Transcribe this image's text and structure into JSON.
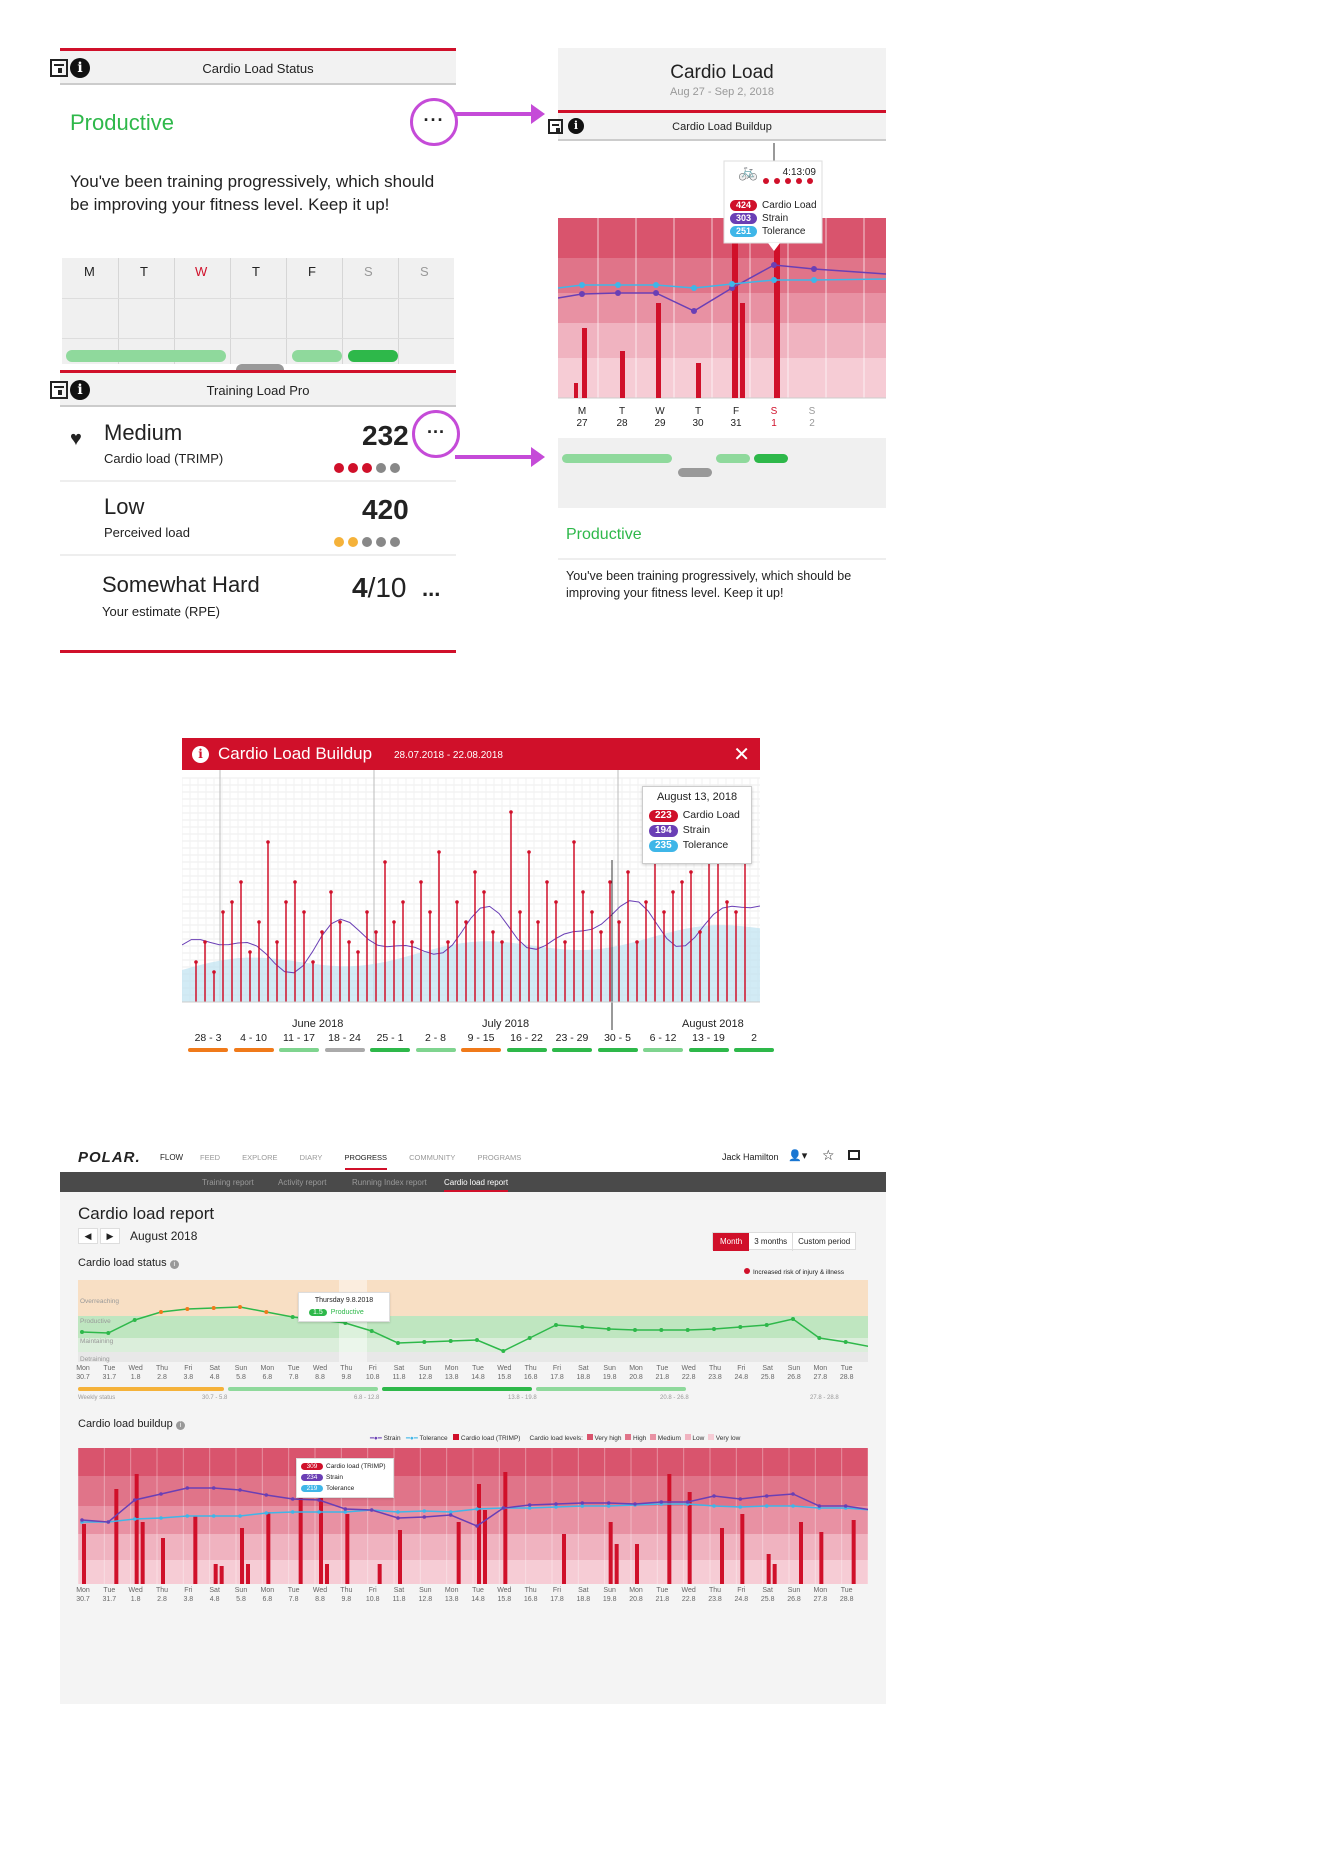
{
  "status_card": {
    "header_title": "Cardio Load Status",
    "status": "Productive",
    "more": "···",
    "description": "You've been training progressively, which should be improving your fitness level. Keep it up!",
    "days": [
      "M",
      "T",
      "W",
      "T",
      "F",
      "S",
      "S"
    ]
  },
  "pro_card": {
    "header_title": "Training Load Pro",
    "rows": [
      {
        "level": "Medium",
        "sub": "Cardio load (TRIMP)",
        "value": "232",
        "more": "···"
      },
      {
        "level": "Low",
        "sub": "Perceived load",
        "value": "420"
      },
      {
        "level": "Somewhat Hard",
        "sub": "Your estimate (RPE)",
        "value_main": "4",
        "value_rest": "/10",
        "more": "..."
      }
    ]
  },
  "mobile_screen": {
    "title": "Cardio Load",
    "date_range": "Aug 27 - Sep 2, 2018",
    "header_title": "Cardio Load Buildup",
    "tooltip": {
      "time": "4:13:09",
      "load": "424",
      "load_label": "Cardio Load",
      "strain": "303",
      "strain_label": "Strain",
      "tolerance": "251",
      "tolerance_label": "Tolerance"
    },
    "days": [
      {
        "d": "M",
        "n": "27"
      },
      {
        "d": "T",
        "n": "28"
      },
      {
        "d": "W",
        "n": "29"
      },
      {
        "d": "T",
        "n": "30"
      },
      {
        "d": "F",
        "n": "31"
      },
      {
        "d": "S",
        "n": "1"
      },
      {
        "d": "S",
        "n": "2"
      }
    ],
    "status": "Productive",
    "description": "You've been training progressively, which should be improving your fitness level. Keep it up!"
  },
  "buildup_popup": {
    "title": "Cardio Load Buildup",
    "date_range": "28.07.2018 - 22.08.2018",
    "close": "✕",
    "tooltip": {
      "date": "August 13, 2018",
      "load": "223",
      "load_label": "Cardio Load",
      "strain": "194",
      "strain_label": "Strain",
      "tolerance": "235",
      "tolerance_label": "Tolerance"
    },
    "months": [
      "June 2018",
      "July 2018",
      "August 2018"
    ],
    "weeks": [
      "28 - 3",
      "4 - 10",
      "11 - 17",
      "18 - 24",
      "25 - 1",
      "2 - 8",
      "9 - 15",
      "16 - 22",
      "23 - 29",
      "30 - 5",
      "6 - 12",
      "13 - 19",
      "2"
    ],
    "week_colors": [
      "#f07a1a",
      "#f07a1a",
      "#7fd48f",
      "#aaaaaa",
      "#2eb84a",
      "#7fd48f",
      "#f07a1a",
      "#2eb84a",
      "#2eb84a",
      "#2eb84a",
      "#7fd48f",
      "#2eb84a",
      "#2eb84a"
    ]
  },
  "web": {
    "logo": "POLAR.",
    "app": "FLOW",
    "nav": [
      "FEED",
      "EXPLORE",
      "DIARY",
      "PROGRESS",
      "COMMUNITY",
      "PROGRAMS"
    ],
    "user": "Jack Hamilton",
    "subnav": [
      "Training report",
      "Activity report",
      "Running Index report",
      "Cardio load report"
    ],
    "page_title": "Cardio load report",
    "month": "August 2018",
    "periods": [
      "Month",
      "3 months",
      "Custom period"
    ],
    "status_section": "Cardio load status",
    "risk_note": "Increased risk of injury & illness",
    "zones": [
      "Overreaching",
      "Productive",
      "Maintaining",
      "Detraining"
    ],
    "status_tooltip": {
      "date": "Thursday 9.8.2018",
      "badge": "1.5",
      "label": "Productive"
    },
    "weekly_label": "Weekly status",
    "weekly_ranges": [
      "30.7 - 5.8",
      "6.8 - 12.8",
      "13.8 - 19.8",
      "20.8 - 26.8",
      "27.8 - 28.8"
    ],
    "buildup_section": "Cardio load buildup",
    "legend": [
      "Strain",
      "Tolerance",
      "Cardio load (TRIMP)",
      "Cardio load levels:",
      "Very high",
      "High",
      "Medium",
      "Low",
      "Very low"
    ],
    "buildup_tooltip": {
      "load": "309",
      "load_label": "Cardio load (TRIMP)",
      "strain": "234",
      "strain_label": "Strain",
      "tolerance": "219",
      "tolerance_label": "Tolerance"
    },
    "ticks_day": [
      "Mon",
      "Tue",
      "Wed",
      "Thu",
      "Fri",
      "Sat",
      "Sun",
      "Mon",
      "Tue",
      "Wed",
      "Thu",
      "Fri",
      "Sat",
      "Sun",
      "Mon",
      "Tue",
      "Wed",
      "Thu",
      "Fri",
      "Sat",
      "Sun",
      "Mon",
      "Tue",
      "Wed",
      "Thu",
      "Fri",
      "Sat",
      "Sun",
      "Mon",
      "Tue"
    ],
    "ticks_date": [
      "30.7",
      "31.7",
      "1.8",
      "2.8",
      "3.8",
      "4.8",
      "5.8",
      "6.8",
      "7.8",
      "8.8",
      "9.8",
      "10.8",
      "11.8",
      "12.8",
      "13.8",
      "14.8",
      "15.8",
      "16.8",
      "17.8",
      "18.8",
      "19.8",
      "20.8",
      "21.8",
      "22.8",
      "23.8",
      "24.8",
      "25.8",
      "26.8",
      "27.8",
      "28.8"
    ]
  },
  "colors": {
    "red": "#d0102a",
    "green": "#2eb84a",
    "purple": "#6a3fb5",
    "blue": "#3fb6e8",
    "orange": "#f07a1a"
  }
}
